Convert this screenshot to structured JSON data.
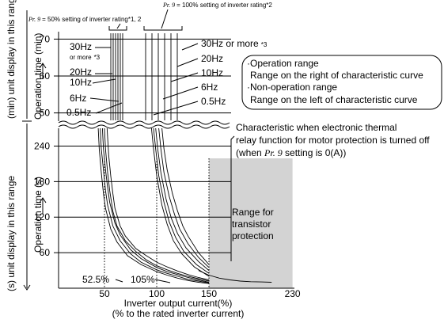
{
  "chart_data": {
    "type": "line",
    "top_notes": {
      "pr": "Pr. 9",
      "left": "= 50% setting of inverter rating*1, 2",
      "right": "= 100% setting of inverter rating*2"
    },
    "ylabel_outer_min": "(min) unit display in this rang",
    "ylabel_outer_s": "(s) unit display in this range",
    "ylabel_min": "Operation time (min)",
    "ylabel_s": "Operation time (s)",
    "xlabel": "Inverter output current(%)",
    "xlabel_sub": "(% to the rated inverter current)",
    "min_ticks": [
      "70",
      "60",
      "50"
    ],
    "s_ticks": [
      "240",
      "180",
      "120",
      "60"
    ],
    "x_ticks": [
      "50",
      "100",
      "150",
      "230"
    ],
    "x_tick_values": [
      50,
      100,
      150,
      230
    ],
    "xlim": [
      0,
      250
    ],
    "ylim_min": [
      48,
      72
    ],
    "ylim_s": [
      0,
      270
    ],
    "freq_left": [
      "30Hz",
      "or more",
      "*3",
      "20Hz",
      "10Hz",
      "6Hz",
      "0.5Hz"
    ],
    "freq_right": [
      "30Hz or more",
      "*3",
      "20Hz",
      "10Hz",
      "6Hz",
      "0.5Hz"
    ],
    "pct_labels": [
      "52.5%",
      "105%"
    ],
    "ranges_box": {
      "title1": "Operation range",
      "desc1": "Range on the right of characteristic curve",
      "title2": "Non-operation range",
      "desc2": "Range on the left of characteristic curve"
    },
    "thermal_note": {
      "line1": "Characteristic when electronic thermal",
      "line2": "relay function for motor protection is turned off",
      "line3a": "(when ",
      "line3b": "Pr. 9",
      "line3c": " setting is 0(A))"
    },
    "transistor_region": {
      "label": [
        "Range for",
        "transistor",
        "protection"
      ],
      "x_start": 150,
      "x_end": 230,
      "color": "#d3d3d3"
    },
    "series": [
      {
        "group": "50%",
        "x": [
          52.5,
          54,
          56,
          58,
          60,
          65,
          70,
          80,
          90,
          100,
          110,
          120,
          130,
          140,
          150
        ],
        "y": [
          270,
          225,
          190,
          160,
          135,
          105,
          88,
          67,
          55,
          44,
          36,
          29,
          23,
          18,
          14
        ]
      },
      {
        "group": "50%",
        "x": [
          50,
          51,
          53,
          55,
          58,
          62,
          70,
          80,
          90,
          100,
          110,
          120,
          130,
          140,
          150
        ],
        "y": [
          270,
          235,
          195,
          165,
          130,
          105,
          80,
          62,
          48,
          38,
          31,
          25,
          20,
          16,
          12
        ]
      },
      {
        "group": "50%",
        "x": [
          48,
          49,
          51,
          53,
          55,
          60,
          65,
          75,
          85,
          100,
          110,
          120,
          130,
          140,
          150
        ],
        "y": [
          270,
          235,
          200,
          170,
          145,
          110,
          90,
          65,
          50,
          35,
          28,
          23,
          18,
          14,
          10
        ]
      },
      {
        "group": "50%",
        "x": [
          46,
          47,
          49,
          51,
          53,
          58,
          65,
          75,
          85,
          100,
          110,
          120,
          130,
          140,
          150
        ],
        "y": [
          270,
          235,
          200,
          165,
          140,
          105,
          80,
          58,
          44,
          31,
          25,
          20,
          15,
          12,
          9
        ]
      },
      {
        "group": "50%",
        "x": [
          44,
          45,
          47,
          49,
          51,
          56,
          62,
          72,
          85,
          100,
          110,
          120,
          130,
          140,
          150
        ],
        "y": [
          270,
          235,
          195,
          160,
          135,
          100,
          78,
          55,
          40,
          28,
          22,
          17,
          13,
          10,
          8
        ]
      },
      {
        "group": "100%",
        "x": [
          105,
          107,
          110,
          115,
          120,
          125,
          130,
          140,
          150
        ],
        "y": [
          270,
          235,
          200,
          160,
          130,
          105,
          88,
          60,
          40
        ]
      },
      {
        "group": "100%",
        "x": [
          102,
          104,
          107,
          112,
          117,
          122,
          130,
          140,
          150
        ],
        "y": [
          270,
          235,
          195,
          155,
          125,
          100,
          75,
          52,
          35
        ]
      },
      {
        "group": "100%",
        "x": [
          99,
          101,
          104,
          109,
          114,
          120,
          128,
          140,
          150
        ],
        "y": [
          270,
          235,
          195,
          150,
          118,
          92,
          68,
          45,
          30
        ]
      },
      {
        "group": "100%",
        "x": [
          97,
          99,
          102,
          107,
          112,
          118,
          126,
          138,
          150
        ],
        "y": [
          270,
          235,
          190,
          145,
          112,
          86,
          62,
          40,
          25
        ]
      },
      {
        "group": "100%",
        "x": [
          95,
          97,
          100,
          105,
          110,
          116,
          124,
          136,
          150
        ],
        "y": [
          270,
          235,
          190,
          140,
          108,
          80,
          58,
          36,
          20
        ]
      },
      {
        "group": "off",
        "x": [
          140,
          150,
          160,
          170,
          180,
          190,
          200,
          210
        ],
        "y": [
          30,
          22,
          17,
          14,
          12,
          11,
          10.5,
          10
        ]
      }
    ]
  }
}
